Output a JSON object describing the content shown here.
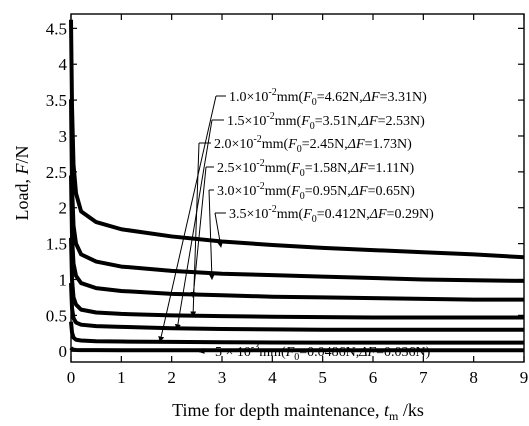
{
  "chart_data": {
    "type": "line",
    "xlabel": {
      "pre": "Time for depth maintenance, ",
      "var": "t",
      "sub": "m",
      "post": " /ks"
    },
    "ylabel": {
      "pre": "Load, ",
      "var": "F",
      "post": "/N"
    },
    "xlim": [
      0,
      9
    ],
    "ylim": [
      -0.15,
      4.7
    ],
    "x_ticks": [
      "0",
      "1",
      "2",
      "3",
      "4",
      "5",
      "6",
      "7",
      "8",
      "9"
    ],
    "y_ticks": [
      "0",
      "0.5",
      "1",
      "1.5",
      "2",
      "2.5",
      "3",
      "3.5",
      "4",
      "4.5"
    ],
    "grid": false,
    "series": [
      {
        "depth": "1.0",
        "F0": "4.62",
        "dF": "3.31",
        "x": [
          0,
          0.02,
          0.05,
          0.1,
          0.2,
          0.5,
          1,
          2,
          3,
          4,
          5,
          6,
          7,
          8,
          9
        ],
        "y": [
          4.62,
          3.4,
          2.6,
          2.2,
          1.95,
          1.8,
          1.7,
          1.6,
          1.53,
          1.48,
          1.44,
          1.41,
          1.38,
          1.35,
          1.31
        ]
      },
      {
        "depth": "1.5",
        "F0": "3.51",
        "dF": "2.53",
        "x": [
          0,
          0.02,
          0.05,
          0.1,
          0.2,
          0.5,
          1,
          2,
          3,
          4,
          5,
          6,
          7,
          8,
          9
        ],
        "y": [
          3.51,
          2.3,
          1.75,
          1.5,
          1.35,
          1.25,
          1.18,
          1.12,
          1.08,
          1.06,
          1.04,
          1.02,
          1.0,
          0.99,
          0.98
        ]
      },
      {
        "depth": "2.0",
        "F0": "2.45",
        "dF": "1.73",
        "x": [
          0,
          0.02,
          0.05,
          0.1,
          0.2,
          0.5,
          1,
          2,
          3,
          4,
          5,
          6,
          7,
          8,
          9
        ],
        "y": [
          2.45,
          1.6,
          1.22,
          1.05,
          0.95,
          0.88,
          0.84,
          0.8,
          0.78,
          0.76,
          0.75,
          0.74,
          0.73,
          0.72,
          0.72
        ]
      },
      {
        "depth": "2.5",
        "F0": "1.58",
        "dF": "1.11",
        "x": [
          0,
          0.02,
          0.05,
          0.1,
          0.2,
          0.5,
          1,
          2,
          3,
          4,
          5,
          6,
          7,
          8,
          9
        ],
        "y": [
          1.58,
          1.0,
          0.75,
          0.65,
          0.58,
          0.54,
          0.52,
          0.5,
          0.49,
          0.48,
          0.475,
          0.47,
          0.47,
          0.47,
          0.47
        ]
      },
      {
        "depth": "3.0",
        "F0": "0.95",
        "dF": "0.65",
        "x": [
          0,
          0.02,
          0.05,
          0.1,
          0.2,
          0.5,
          1,
          2,
          3,
          4,
          5,
          6,
          7,
          8,
          9
        ],
        "y": [
          0.95,
          0.6,
          0.46,
          0.4,
          0.37,
          0.35,
          0.34,
          0.32,
          0.31,
          0.305,
          0.3,
          0.3,
          0.3,
          0.3,
          0.3
        ]
      },
      {
        "depth": "3.5",
        "F0": "0.412",
        "dF": "0.29",
        "x": [
          0,
          0.02,
          0.05,
          0.1,
          0.2,
          0.5,
          1,
          2,
          3,
          4,
          5,
          6,
          7,
          8,
          9
        ],
        "y": [
          0.412,
          0.26,
          0.19,
          0.16,
          0.15,
          0.14,
          0.135,
          0.13,
          0.125,
          0.122,
          0.12,
          0.12,
          0.12,
          0.12,
          0.12
        ]
      },
      {
        "depth": "5",
        "F0": "0.0486",
        "dF": "0.036",
        "x": [
          0,
          0.02,
          0.05,
          0.1,
          0.2,
          0.5,
          1,
          2,
          3,
          4,
          5,
          6,
          7,
          8,
          9
        ],
        "y": [
          0.0486,
          0.03,
          0.022,
          0.018,
          0.016,
          0.015,
          0.014,
          0.013,
          0.013,
          0.013,
          0.013,
          0.013,
          0.013,
          0.013,
          0.013
        ]
      }
    ],
    "legend": {
      "unit": "mm",
      "exp_main": "-2",
      "exp_small": "-3",
      "times": "×10",
      "times_spaced": " × 10",
      "F_var": "F",
      "F_sub": "0",
      "F_suffix": "N",
      "dF_var": "ΔF",
      "dF_suffix": "N"
    }
  }
}
